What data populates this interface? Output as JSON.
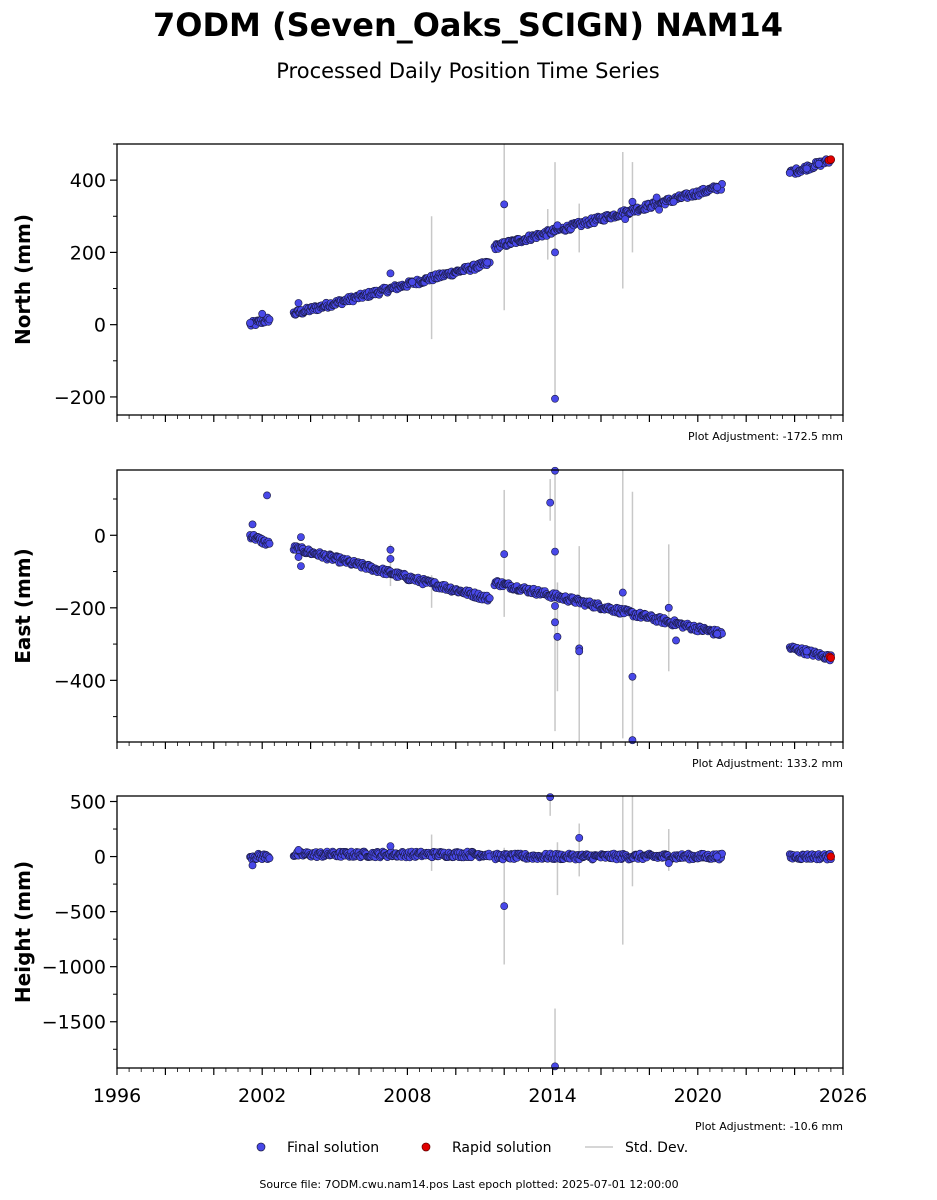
{
  "title": "7ODM (Seven_Oaks_SCIGN) NAM14",
  "subtitle": "Processed Daily Position Time Series",
  "source_note": "Source file: 7ODM.cwu.nam14.pos  Last epoch plotted: 2025-07-01 12:00:00",
  "legend": {
    "final": "Final solution",
    "rapid": "Rapid solution",
    "stddev": "Std. Dev."
  },
  "colors": {
    "final": "#4848e8",
    "final_edge": "#1a1a40",
    "rapid": "#e00000",
    "stddev": "#c8c8c8"
  },
  "chart_data": [
    {
      "type": "scatter",
      "ylabel": "North (mm)",
      "adjustment": "Plot Adjustment: -172.5 mm",
      "xlim": [
        1996,
        2026
      ],
      "ylim": [
        -250,
        500
      ],
      "yticks": [
        -200,
        0,
        200,
        400
      ],
      "ytick_labels": [
        "−200",
        "0",
        "200",
        "400"
      ],
      "segments": [
        [
          2001.5,
          2002.3,
          0,
          15
        ],
        [
          2003.3,
          2011.4,
          30,
          170
        ],
        [
          2011.6,
          2021.0,
          215,
          382
        ]
      ],
      "rapid_segment": [
        2023.8,
        2025.5,
        420,
        455
      ],
      "points": [
        [
          2001.5,
          5
        ],
        [
          2002.0,
          30
        ],
        [
          2003.5,
          60
        ],
        [
          2007.3,
          142
        ],
        [
          2008.2,
          118
        ],
        [
          2011.3,
          172
        ],
        [
          2012.0,
          333
        ],
        [
          2014.1,
          200
        ],
        [
          2014.1,
          -205
        ],
        [
          2014.2,
          275
        ],
        [
          2017.0,
          292
        ],
        [
          2017.3,
          340
        ],
        [
          2018.3,
          352
        ],
        [
          2018.4,
          318
        ],
        [
          2019.0,
          340
        ],
        [
          2020.8,
          380
        ],
        [
          2023.8,
          420
        ],
        [
          2024.5,
          432
        ],
        [
          2025.0,
          445
        ]
      ],
      "rapid_points": [
        [
          2025.42,
          455
        ],
        [
          2025.5,
          457
        ]
      ],
      "errorbars": [
        [
          2009.0,
          -40,
          300
        ],
        [
          2012.0,
          40,
          500
        ],
        [
          2013.8,
          180,
          320
        ],
        [
          2014.1,
          -200,
          450
        ],
        [
          2015.1,
          200,
          335
        ],
        [
          2016.9,
          100,
          478
        ],
        [
          2017.3,
          200,
          450
        ]
      ]
    },
    {
      "type": "scatter",
      "ylabel": "East (mm)",
      "adjustment": "Plot Adjustment: 133.2 mm",
      "xlim": [
        1996,
        2026
      ],
      "ylim": [
        -570,
        180
      ],
      "yticks": [
        -400,
        -200,
        0
      ],
      "ytick_labels": [
        "−400",
        "−200",
        "0"
      ],
      "segments": [
        [
          2001.5,
          2002.3,
          0,
          -25
        ],
        [
          2003.3,
          2011.4,
          -35,
          -175
        ],
        [
          2011.6,
          2021.0,
          -130,
          -272
        ]
      ],
      "rapid_segment": [
        2023.8,
        2025.5,
        -310,
        -338
      ],
      "points": [
        [
          2001.6,
          30
        ],
        [
          2002.2,
          110
        ],
        [
          2003.5,
          -60
        ],
        [
          2003.6,
          -85
        ],
        [
          2003.6,
          -5
        ],
        [
          2007.3,
          -40
        ],
        [
          2007.3,
          -65
        ],
        [
          2012.0,
          -52
        ],
        [
          2013.9,
          90
        ],
        [
          2014.1,
          178
        ],
        [
          2014.1,
          -45
        ],
        [
          2014.1,
          -195
        ],
        [
          2014.1,
          -240
        ],
        [
          2014.2,
          -280
        ],
        [
          2015.1,
          -312
        ],
        [
          2015.1,
          -320
        ],
        [
          2016.9,
          -158
        ],
        [
          2017.3,
          -390
        ],
        [
          2017.3,
          -565
        ],
        [
          2018.8,
          -200
        ],
        [
          2019.1,
          -290
        ],
        [
          2020.8,
          -272
        ],
        [
          2024.5,
          -320
        ]
      ],
      "rapid_points": [
        [
          2025.45,
          -335
        ],
        [
          2025.5,
          -338
        ]
      ],
      "errorbars": [
        [
          2007.3,
          -140,
          -25
        ],
        [
          2009.0,
          -200,
          -110
        ],
        [
          2012.0,
          -225,
          125
        ],
        [
          2013.9,
          40,
          155
        ],
        [
          2014.1,
          -540,
          180
        ],
        [
          2014.2,
          -430,
          -130
        ],
        [
          2015.1,
          -570,
          -30
        ],
        [
          2016.9,
          -560,
          180
        ],
        [
          2017.3,
          -570,
          120
        ],
        [
          2018.8,
          -375,
          -25
        ]
      ]
    },
    {
      "type": "scatter",
      "ylabel": "Height (mm)",
      "adjustment": "Plot Adjustment: -10.6 mm",
      "xlim": [
        1996,
        2026
      ],
      "ylim": [
        -1920,
        550
      ],
      "yticks": [
        -1500,
        -1000,
        -500,
        0,
        500
      ],
      "ytick_labels": [
        "−1500",
        "−1000",
        "−500",
        "0",
        "500"
      ],
      "xticks": [
        1996,
        2002,
        2008,
        2014,
        2020,
        2026
      ],
      "xtick_labels": [
        "1996",
        "2002",
        "2008",
        "2014",
        "2020",
        "2026"
      ],
      "segments": [
        [
          2001.5,
          2002.3,
          0,
          0
        ],
        [
          2003.3,
          2011.4,
          20,
          20
        ],
        [
          2011.6,
          2021.0,
          0,
          0
        ]
      ],
      "rapid_segment": [
        2023.8,
        2025.5,
        0,
        0
      ],
      "points": [
        [
          2001.6,
          -80
        ],
        [
          2003.5,
          60
        ],
        [
          2007.3,
          95
        ],
        [
          2012.0,
          -450
        ],
        [
          2013.9,
          540
        ],
        [
          2014.1,
          -1905
        ],
        [
          2015.1,
          170
        ],
        [
          2018.8,
          -60
        ],
        [
          2020.8,
          0
        ]
      ],
      "rapid_points": [
        [
          2025.5,
          0
        ]
      ],
      "errorbars": [
        [
          2009.0,
          -130,
          200
        ],
        [
          2012.0,
          -980,
          80
        ],
        [
          2013.9,
          370,
          550
        ],
        [
          2014.1,
          -1920,
          -1380
        ],
        [
          2014.2,
          -350,
          130
        ],
        [
          2015.1,
          -180,
          300
        ],
        [
          2016.9,
          -800,
          550
        ],
        [
          2017.3,
          -270,
          550
        ],
        [
          2018.8,
          -130,
          250
        ]
      ]
    }
  ]
}
